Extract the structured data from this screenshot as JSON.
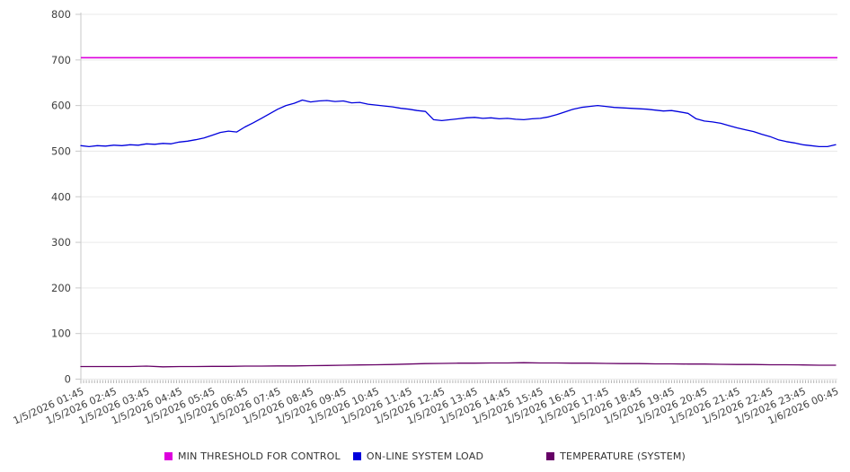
{
  "chart_data": {
    "type": "line",
    "title": "",
    "xlabel": "",
    "ylabel": "",
    "ylim": [
      0,
      800
    ],
    "yticks": [
      0,
      100,
      200,
      300,
      400,
      500,
      600,
      700,
      800
    ],
    "grid": true,
    "legend_position": "bottom",
    "x_start_hour": 1.75,
    "x_hour_span": 23,
    "minor_tick_minutes": 5,
    "x_labels": [
      "1/5/2026 01:45",
      "1/5/2026 02:45",
      "1/5/2026 03:45",
      "1/5/2026 04:45",
      "1/5/2026 05:45",
      "1/5/2026 06:45",
      "1/5/2026 07:45",
      "1/5/2026 08:45",
      "1/5/2026 09:45",
      "1/5/2026 10:45",
      "1/5/2026 11:45",
      "1/5/2026 12:45",
      "1/5/2026 13:45",
      "1/5/2026 14:45",
      "1/5/2026 15:45",
      "1/5/2026 16:45",
      "1/5/2026 17:45",
      "1/5/2026 18:45",
      "1/5/2026 19:45",
      "1/5/2026 20:45",
      "1/5/2026 21:45",
      "1/5/2026 22:45",
      "1/5/2026 23:45",
      "1/6/2026 00:45"
    ],
    "series": [
      {
        "name": "MIN THRESHOLD FOR CONTROL",
        "type": "hline",
        "color": "#dd00dd",
        "value": 705
      },
      {
        "name": "ON-LINE SYSTEM LOAD",
        "type": "line",
        "color": "#0000dd",
        "x_step_hours": 0.25,
        "values": [
          512,
          510,
          512,
          511,
          513,
          512,
          514,
          513,
          516,
          515,
          517,
          516,
          520,
          522,
          525,
          529,
          535,
          541,
          544,
          542,
          553,
          562,
          572,
          582,
          592,
          600,
          605,
          612,
          608,
          610,
          611,
          609,
          610,
          606,
          607,
          603,
          601,
          599,
          597,
          594,
          592,
          589,
          587,
          569,
          567,
          569,
          571,
          573,
          574,
          572,
          573,
          571,
          572,
          570,
          569,
          571,
          572,
          575,
          580,
          586,
          592,
          596,
          598,
          600,
          598,
          596,
          595,
          594,
          593,
          592,
          590,
          588,
          589,
          586,
          583,
          571,
          566,
          564,
          561,
          556,
          551,
          547,
          543,
          537,
          532,
          525,
          521,
          518,
          514,
          512,
          510,
          510,
          514
        ]
      },
      {
        "name": "TEMPERATURE (SYSTEM)",
        "type": "line",
        "color": "#660066",
        "x_step_hours": 0.5,
        "values": [
          27.5,
          27.5,
          27.5,
          27.5,
          28.5,
          27,
          27.5,
          27.5,
          28,
          28,
          28.5,
          28.5,
          29,
          29,
          29.5,
          30,
          30.5,
          31,
          31.5,
          32,
          33,
          34,
          34.5,
          35,
          35,
          35.5,
          35.5,
          36,
          35.5,
          35.5,
          35,
          35,
          34.5,
          34,
          34,
          33.5,
          33.5,
          33,
          33,
          32.5,
          32,
          32,
          31.5,
          31.5,
          31,
          30.5,
          30.5
        ]
      }
    ],
    "colors": {
      "background": "#ffffff",
      "gridline": "#e9e9e9",
      "axis": "#c8c8c8",
      "minor_tick": "#b5b5b5",
      "tick_text": "#404040"
    }
  }
}
